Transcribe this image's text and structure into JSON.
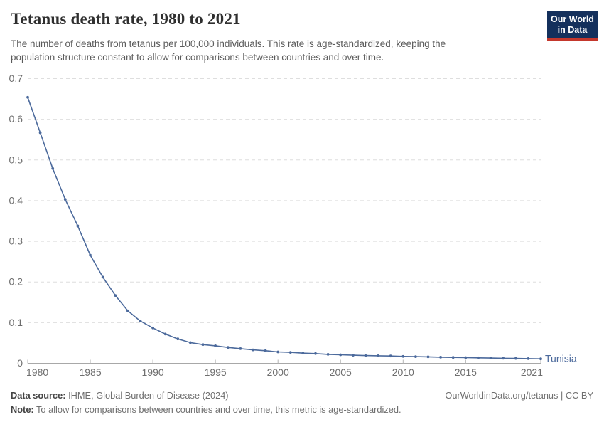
{
  "header": {
    "title": "Tetanus death rate, 1980 to 2021",
    "subtitle_line1": "The number of deaths from tetanus per 100,000 individuals. This rate is age-standardized, keeping the",
    "subtitle_line2": "population structure constant to allow for comparisons between countries and over time.",
    "logo": {
      "line1": "Our World",
      "line2": "in Data",
      "bg_color": "#14305c",
      "stripe_color": "#c4372c"
    }
  },
  "chart_data": {
    "type": "line",
    "title": "Tetanus death rate, 1980 to 2021",
    "xlabel": "",
    "ylabel": "",
    "xlim": [
      1980,
      2021
    ],
    "ylim": [
      0,
      0.7
    ],
    "grid": "horizontal-dashed",
    "legend_position": "end-of-line-label",
    "x_ticks": [
      1980,
      1985,
      1990,
      1995,
      2000,
      2005,
      2010,
      2015,
      2021
    ],
    "y_ticks": [
      0,
      0.1,
      0.2,
      0.3,
      0.4,
      0.5,
      0.6,
      0.7
    ],
    "y_tick_labels": [
      "0",
      "0.1",
      "0.2",
      "0.3",
      "0.4",
      "0.5",
      "0.6",
      "0.7"
    ],
    "colors": {
      "series_blue": "#4c6a9c",
      "gridline": "#dedede",
      "axis_line": "#a8a8a8",
      "tick_text": "#6e6e6e"
    },
    "series": [
      {
        "name": "Tunisia",
        "color": "#4c6a9c",
        "x": [
          1980,
          1981,
          1982,
          1983,
          1984,
          1985,
          1986,
          1987,
          1988,
          1989,
          1990,
          1991,
          1992,
          1993,
          1994,
          1995,
          1996,
          1997,
          1998,
          1999,
          2000,
          2001,
          2002,
          2003,
          2004,
          2005,
          2006,
          2007,
          2008,
          2009,
          2010,
          2011,
          2012,
          2013,
          2014,
          2015,
          2016,
          2017,
          2018,
          2019,
          2020,
          2021
        ],
        "values": [
          0.654,
          0.567,
          0.479,
          0.403,
          0.338,
          0.266,
          0.212,
          0.167,
          0.129,
          0.104,
          0.087,
          0.072,
          0.06,
          0.051,
          0.046,
          0.043,
          0.039,
          0.036,
          0.033,
          0.031,
          0.028,
          0.027,
          0.025,
          0.024,
          0.022,
          0.021,
          0.02,
          0.019,
          0.0185,
          0.018,
          0.017,
          0.0165,
          0.016,
          0.015,
          0.0145,
          0.014,
          0.0135,
          0.013,
          0.0125,
          0.012,
          0.0115,
          0.011
        ]
      }
    ]
  },
  "footer": {
    "source_label": "Data source:",
    "source_value": "IHME, Global Burden of Disease (2024)",
    "url": "OurWorldinData.org/tetanus | CC BY",
    "note_label": "Note:",
    "note_value": "To allow for comparisons between countries and over time, this metric is age-standardized."
  }
}
